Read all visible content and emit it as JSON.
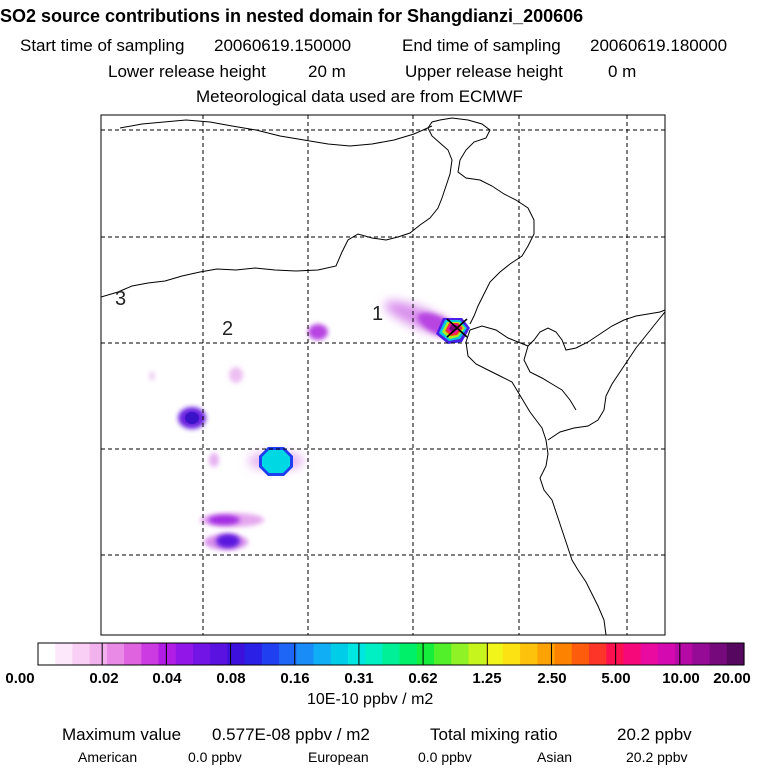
{
  "title": "SO2 source contributions in nested domain for Shangdianzi_200606",
  "header": {
    "start_label": "Start time of sampling",
    "start_value": "20060619.150000",
    "end_label": "End time of sampling",
    "end_value": "20060619.180000",
    "lower_label": "Lower release height",
    "lower_value": "20 m",
    "upper_label": "Upper release height",
    "upper_value": "0 m",
    "meteo": "Meteorological data used are from ECMWF"
  },
  "map": {
    "region_labels": [
      "1",
      "2",
      "3"
    ],
    "receptor_marker": "cross-marker"
  },
  "colorbar": {
    "tick_labels": [
      "0.00",
      "0.02",
      "0.04",
      "0.08",
      "0.16",
      "0.31",
      "0.62",
      "1.25",
      "2.50",
      "5.00",
      "10.00",
      "20.00"
    ],
    "unit_label": "10E-10 ppbv / m2",
    "colors": [
      "#ffffff",
      "#fde8fb",
      "#f9cff5",
      "#f3b2ee",
      "#e98be6",
      "#df62df",
      "#cc3ae2",
      "#b21de6",
      "#9216e8",
      "#7314e6",
      "#5a12e0",
      "#3d10dd",
      "#2b20e6",
      "#1f3ff0",
      "#1e66f5",
      "#1a8cf7",
      "#10aff5",
      "#00cde8",
      "#00e6e0",
      "#00f0c4",
      "#00f098",
      "#00f06a",
      "#16ee3c",
      "#52f02a",
      "#8ef226",
      "#c6f51e",
      "#f2f51a",
      "#fde213",
      "#fdc20b",
      "#fda205",
      "#fd8200",
      "#fd5c0d",
      "#fd3528",
      "#fd1050",
      "#f6087a",
      "#eb0aa0",
      "#d40ab0",
      "#b50aa6",
      "#960b96",
      "#760a7d",
      "#560860"
    ]
  },
  "footer": {
    "max_label": "Maximum value",
    "max_value": "0.577E-08 ppbv / m2",
    "total_label": "Total mixing ratio",
    "total_value": "20.2 ppbv",
    "american_label": "American",
    "american_value": "0.0 ppbv",
    "european_label": "European",
    "european_value": "0.0 ppbv",
    "asian_label": "Asian",
    "asian_value": "20.2 ppbv"
  }
}
